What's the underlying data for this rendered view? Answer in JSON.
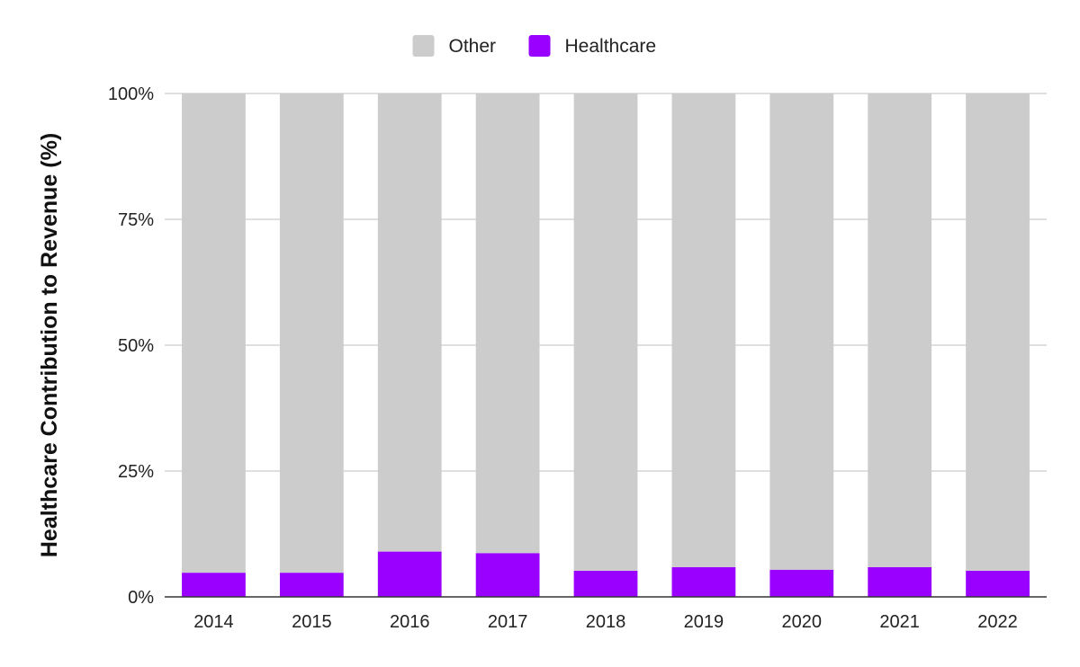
{
  "chart_data": {
    "type": "bar",
    "stacked": true,
    "normalized_percent": true,
    "categories": [
      "2014",
      "2015",
      "2016",
      "2017",
      "2018",
      "2019",
      "2020",
      "2021",
      "2022"
    ],
    "series": [
      {
        "name": "Healthcare",
        "color": "#9900ff",
        "values": [
          4.8,
          4.8,
          9.0,
          8.7,
          5.2,
          5.9,
          5.4,
          5.9,
          5.2
        ]
      },
      {
        "name": "Other",
        "color": "#cccccc",
        "values": [
          95.2,
          95.2,
          91.0,
          91.3,
          94.8,
          94.1,
          94.6,
          94.1,
          94.8
        ]
      }
    ],
    "legend": {
      "position": "top",
      "order": [
        "Other",
        "Healthcare"
      ]
    },
    "title": "",
    "xlabel": "",
    "ylabel": "Healthcare Contribution to Revenue (%)",
    "yticks": [
      "0%",
      "25%",
      "50%",
      "75%",
      "100%"
    ],
    "ylim": [
      0,
      100
    ],
    "grid": true
  }
}
